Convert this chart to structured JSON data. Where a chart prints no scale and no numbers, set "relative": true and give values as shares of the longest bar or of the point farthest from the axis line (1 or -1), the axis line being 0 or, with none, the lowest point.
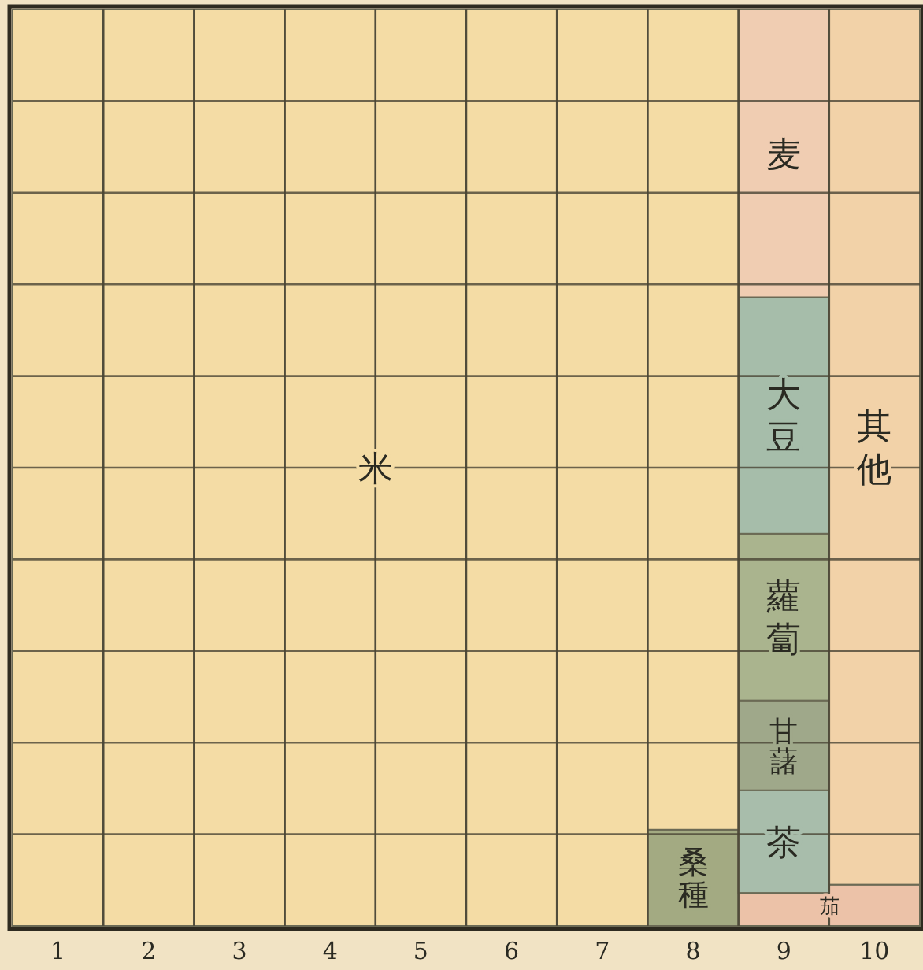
{
  "chart_data": {
    "type": "bar",
    "stacked": true,
    "relative": true,
    "grid": true,
    "categories": [
      "1",
      "2",
      "3",
      "4",
      "5",
      "6",
      "7",
      "8",
      "9",
      "10"
    ],
    "series": [
      {
        "name": "茄",
        "color": "#ecc2a8",
        "values": [
          null,
          null,
          null,
          null,
          null,
          null,
          null,
          null,
          0.036,
          0.045
        ]
      },
      {
        "name": "桑種",
        "color": "#a3aa82",
        "values": [
          null,
          null,
          null,
          null,
          null,
          null,
          null,
          0.105,
          null,
          null
        ]
      },
      {
        "name": "茶",
        "color": "#a8bdab",
        "values": [
          null,
          null,
          null,
          null,
          null,
          null,
          null,
          null,
          0.112,
          null
        ]
      },
      {
        "name": "甘藷",
        "color": "#9fa88a",
        "values": [
          null,
          null,
          null,
          null,
          null,
          null,
          null,
          null,
          0.098,
          null
        ]
      },
      {
        "name": "蘿蔔",
        "color": "#aab48e",
        "values": [
          null,
          null,
          null,
          null,
          null,
          null,
          null,
          null,
          0.182,
          null
        ]
      },
      {
        "name": "大豆",
        "color": "#a6bdaa",
        "values": [
          null,
          null,
          null,
          null,
          null,
          null,
          null,
          null,
          0.258,
          null
        ]
      },
      {
        "name": "麦",
        "color": "#f0cdb2",
        "values": [
          null,
          null,
          null,
          null,
          null,
          null,
          null,
          null,
          0.314,
          null
        ]
      },
      {
        "name": "米",
        "color": "#f4dca5",
        "values": [
          1,
          1,
          1,
          1,
          1,
          1,
          1,
          0.895,
          null,
          null
        ]
      },
      {
        "name": "其他",
        "color": "#f2d2a8",
        "values": [
          null,
          null,
          null,
          null,
          null,
          null,
          null,
          null,
          null,
          0.955
        ]
      }
    ]
  }
}
